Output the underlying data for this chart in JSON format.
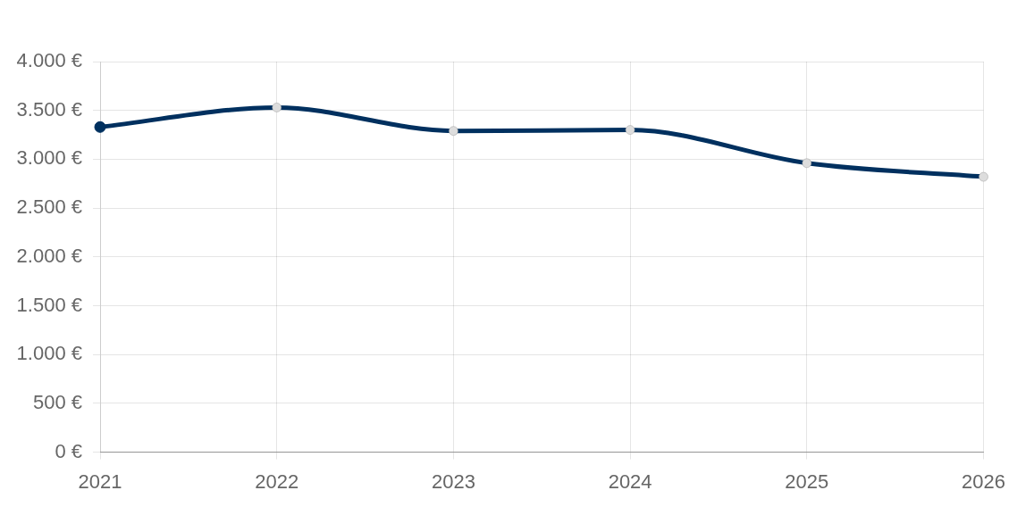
{
  "chart_data": {
    "type": "line",
    "categories": [
      "2021",
      "2022",
      "2023",
      "2024",
      "2025",
      "2026"
    ],
    "series": [
      {
        "color": "#00305f",
        "colors": [
          "#00305f",
          "#dddddd",
          "#dddddd",
          "#dddddd",
          "#dddddd",
          "#dddddd"
        ],
        "values": [
          3330,
          3530,
          3290,
          3300,
          2960,
          2820
        ]
      }
    ],
    "ylim": [
      0,
      4000
    ],
    "yticks": [
      {
        "value": 0,
        "label": "0 €"
      },
      {
        "value": 500,
        "label": "500 €"
      },
      {
        "value": 1000,
        "label": "1.000 €"
      },
      {
        "value": 1500,
        "label": "1.500 €"
      },
      {
        "value": 2000,
        "label": "2.000 €"
      },
      {
        "value": 2500,
        "label": "2.500 €"
      },
      {
        "value": 3000,
        "label": "3.000 €"
      },
      {
        "value": 3500,
        "label": "3.500 €"
      },
      {
        "value": 4000,
        "label": "4.000 €"
      }
    ],
    "grid": true,
    "marker": "circle",
    "line_style": "solid"
  }
}
